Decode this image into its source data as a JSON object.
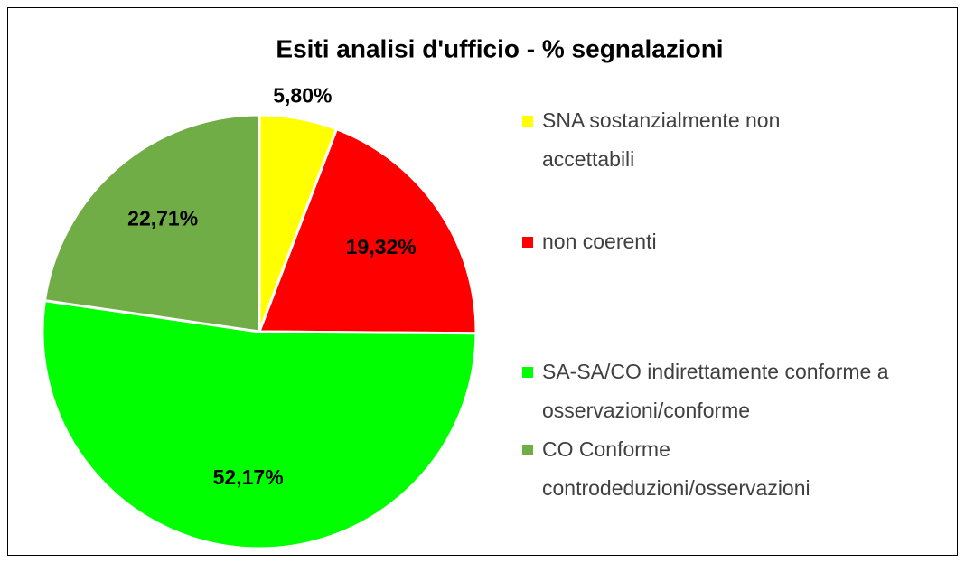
{
  "chart_data": {
    "type": "pie",
    "title": "Esiti analisi d'ufficio - % segnalazioni",
    "categories": [
      "SNA sostanzialmente non accettabili",
      "non coerenti",
      "SA-SA/CO indirettamente conforme a osservazioni/conforme",
      "CO Conforme controdeduzioni/osservazioni"
    ],
    "values": [
      5.8,
      19.32,
      52.17,
      22.71
    ],
    "value_labels": [
      "5,80%",
      "19,32%",
      "52,17%",
      "22,71%"
    ],
    "colors": [
      "#ffff00",
      "#ff0000",
      "#00ff00",
      "#70ad47"
    ],
    "legend": "right"
  }
}
